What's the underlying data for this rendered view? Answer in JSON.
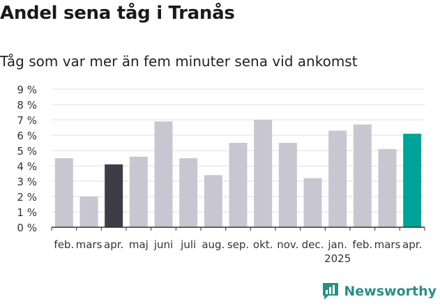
{
  "title": "Andel sena tåg i Tranås",
  "subtitle": "Tåg som var mer än fem minuter sena vid ankomst",
  "brand": {
    "name": "Newsworthy",
    "icon": "bar-chart-logo-icon",
    "color": "#2a8f86"
  },
  "colors": {
    "default_bar": "#c8c7d1",
    "highlight_dark": "#3d3c47",
    "highlight_accent": "#00a399",
    "grid": "#dddddd",
    "axis": "#333333"
  },
  "chart_data": {
    "type": "bar",
    "categories": [
      "feb.",
      "mars",
      "apr.",
      "maj",
      "juni",
      "juli",
      "aug.",
      "sep.",
      "okt.",
      "nov.",
      "dec.",
      "jan.",
      "feb.",
      "mars",
      "apr."
    ],
    "year_label": {
      "text": "2025",
      "category_index": 11
    },
    "values": [
      4.5,
      2.0,
      4.1,
      4.6,
      6.9,
      4.5,
      3.4,
      5.5,
      7.0,
      5.5,
      3.2,
      6.3,
      6.7,
      5.1,
      6.1
    ],
    "highlight": {
      "2": "dark",
      "14": "accent"
    },
    "yticks": [
      "0 %",
      "1 %",
      "2 %",
      "3 %",
      "4 %",
      "5 %",
      "6 %",
      "7 %",
      "8 %",
      "9 %"
    ],
    "ylim": [
      0,
      9
    ],
    "grid": true,
    "xlabel": "",
    "ylabel": ""
  }
}
